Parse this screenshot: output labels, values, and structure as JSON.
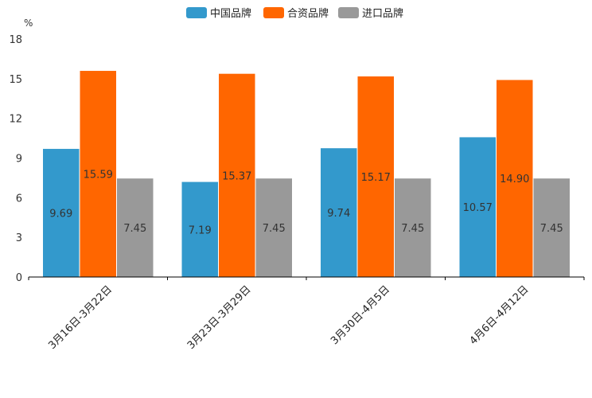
{
  "chart_data": {
    "type": "bar",
    "title": "",
    "ylabel": "%",
    "xlabel": "",
    "ylim": [
      0,
      18
    ],
    "yticks": [
      "0",
      "3",
      "6",
      "9",
      "12",
      "15",
      "18"
    ],
    "categories": [
      "3月16日-3月22日",
      "3月23日-3月29日",
      "3月30日-4月5日",
      "4月6日-4月12日"
    ],
    "series": [
      {
        "name": "中国品牌",
        "color": "#3399cc",
        "values": [
          9.69,
          7.19,
          9.74,
          10.57
        ],
        "labels": [
          "9.69",
          "7.19",
          "9.74",
          "10.57"
        ]
      },
      {
        "name": "合资品牌",
        "color": "#ff6600",
        "values": [
          15.59,
          15.37,
          15.17,
          14.9
        ],
        "labels": [
          "15.59",
          "15.37",
          "15.17",
          "14.90"
        ]
      },
      {
        "name": "进口品牌",
        "color": "#999999",
        "values": [
          7.45,
          7.45,
          7.45,
          7.45
        ],
        "labels": [
          "7.45",
          "7.45",
          "7.45",
          "7.45"
        ]
      }
    ],
    "legend_position": "top-center",
    "grid": false
  }
}
